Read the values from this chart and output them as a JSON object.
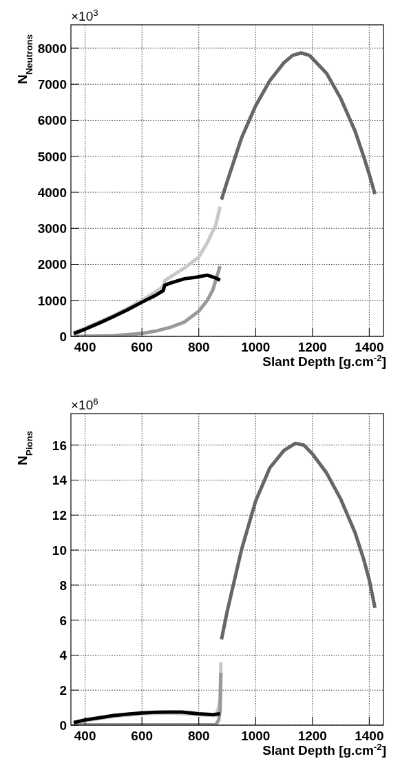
{
  "chart_data": [
    {
      "type": "line",
      "ylabel": "N$_{Neutrons}$",
      "xlabel": "Slant Depth [g.cm$^{-2}$]",
      "annotations": [
        "×10$^{3}$"
      ],
      "xlim": [
        350,
        1450
      ],
      "xticks": [
        400,
        600,
        800,
        1000,
        1200,
        1400
      ],
      "ylim": [
        0,
        8650
      ],
      "yticks": [
        0,
        1000,
        2000,
        3000,
        4000,
        5000,
        6000,
        7000,
        8000
      ],
      "grid": true,
      "marker": "none",
      "line_style": "solid",
      "series": [
        {
          "color": "#c8c8c8",
          "x": [
            360,
            400,
            450,
            500,
            550,
            600,
            650,
            675,
            680,
            700,
            750,
            800,
            830,
            860,
            875
          ],
          "values": [
            100,
            230,
            400,
            580,
            780,
            1000,
            1250,
            1380,
            1550,
            1650,
            1900,
            2200,
            2600,
            3100,
            3600
          ]
        },
        {
          "color": "#999999",
          "x": [
            360,
            450,
            500,
            600,
            650,
            700,
            750,
            800,
            830,
            850,
            865,
            875
          ],
          "values": [
            0,
            10,
            20,
            80,
            150,
            250,
            400,
            700,
            1000,
            1300,
            1700,
            1950
          ]
        },
        {
          "color": "#000000",
          "x": [
            360,
            400,
            450,
            500,
            550,
            600,
            650,
            675,
            680,
            700,
            750,
            790,
            830,
            860,
            875
          ],
          "values": [
            80,
            200,
            370,
            550,
            740,
            950,
            1150,
            1270,
            1420,
            1480,
            1600,
            1640,
            1700,
            1620,
            1560
          ]
        },
        {
          "color": "#666666",
          "x": [
            880,
            900,
            950,
            1000,
            1050,
            1100,
            1130,
            1160,
            1190,
            1250,
            1300,
            1350,
            1380,
            1400,
            1420
          ],
          "values": [
            3800,
            4300,
            5500,
            6400,
            7100,
            7600,
            7800,
            7870,
            7800,
            7300,
            6600,
            5700,
            5000,
            4500,
            3950
          ]
        }
      ]
    },
    {
      "type": "line",
      "ylabel": "N$_{Pions}$",
      "xlabel": "Slant Depth [g.cm$^{-2}$]",
      "annotations": [
        "×10$^{6}$"
      ],
      "xlim": [
        350,
        1450
      ],
      "xticks": [
        400,
        600,
        800,
        1000,
        1200,
        1400
      ],
      "ylim": [
        0,
        17.8
      ],
      "yticks": [
        0,
        2,
        4,
        6,
        8,
        10,
        12,
        14,
        16
      ],
      "grid": true,
      "marker": "none",
      "line_style": "solid",
      "series": [
        {
          "color": "#c8c8c8",
          "x": [
            360,
            400,
            500,
            600,
            700,
            800,
            860,
            870,
            875,
            878
          ],
          "values": [
            0.1,
            0.25,
            0.5,
            0.65,
            0.7,
            0.6,
            0.55,
            1.0,
            1.5,
            3.6
          ]
        },
        {
          "color": "#999999",
          "x": [
            360,
            500,
            700,
            860,
            870,
            875,
            878
          ],
          "values": [
            0.02,
            0.02,
            0.02,
            0.02,
            0.3,
            0.8,
            3.0
          ]
        },
        {
          "color": "#000000",
          "x": [
            360,
            400,
            450,
            500,
            550,
            600,
            650,
            700,
            740,
            800,
            850,
            875
          ],
          "values": [
            0.15,
            0.3,
            0.42,
            0.55,
            0.63,
            0.7,
            0.74,
            0.75,
            0.75,
            0.65,
            0.6,
            0.65
          ]
        },
        {
          "color": "#666666",
          "x": [
            880,
            900,
            950,
            1000,
            1050,
            1100,
            1140,
            1170,
            1200,
            1250,
            1300,
            1350,
            1380,
            1400,
            1420
          ],
          "values": [
            4.9,
            6.5,
            10.0,
            12.8,
            14.7,
            15.7,
            16.1,
            16.0,
            15.5,
            14.4,
            12.9,
            11.0,
            9.5,
            8.3,
            6.7
          ]
        }
      ]
    }
  ]
}
